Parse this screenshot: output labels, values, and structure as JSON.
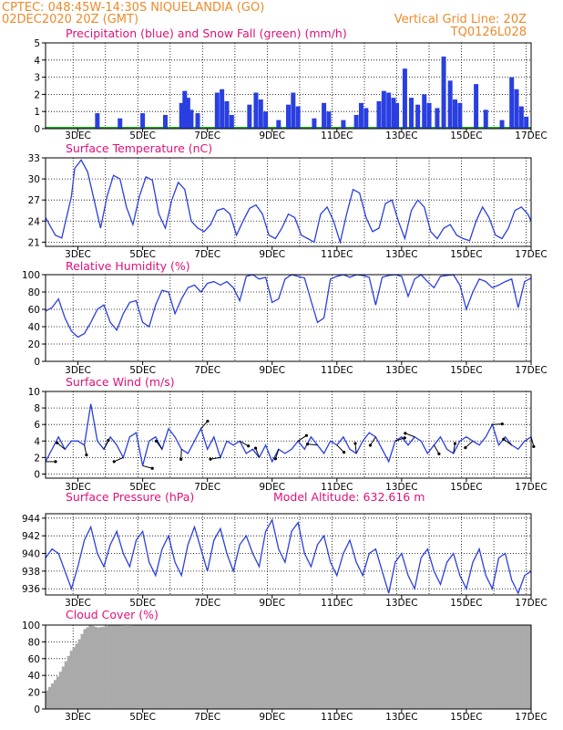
{
  "header": {
    "line1": "CPTEC:   048:45W-14:30S   NIQUELANDIA (GO)",
    "line2": "02DEC2020 20Z (GMT)",
    "grid_note": "Vertical Grid Line: 20Z",
    "code": "TQ0126L028"
  },
  "colors": {
    "series": "#2a3fe0",
    "snow": "#22aa22",
    "cloud": "#aaaaaa",
    "title": "#e0107a",
    "header": "#ee8a2a"
  },
  "x_ticks": [
    "3DEC",
    "5DEC",
    "7DEC",
    "9DEC",
    "11DEC",
    "13DEC",
    "15DEC",
    "17DEC"
  ],
  "chart_data": [
    {
      "type": "bar",
      "title": "Precipitation (blue) and Snow Fall (green) (mm/h)",
      "ylim": [
        0,
        5
      ],
      "yticks": [
        0,
        1,
        2,
        3,
        4,
        5
      ],
      "grid": true,
      "series": [
        {
          "x": [
            3.6,
            4.3,
            5.0,
            5.7,
            6.2,
            6.3,
            6.4,
            6.5,
            6.7,
            7.3,
            7.45,
            7.6,
            7.75,
            8.3,
            8.5,
            8.65,
            8.8,
            9.2,
            9.5,
            9.65,
            9.8,
            10.3,
            10.6,
            10.75,
            11.2,
            11.6,
            11.75,
            11.9,
            12.3,
            12.45,
            12.6,
            12.75,
            12.85,
            13.1,
            13.3,
            13.5,
            13.7,
            13.85,
            14.1,
            14.3,
            14.5,
            14.65,
            14.8,
            15.3,
            15.6,
            16.1,
            16.4,
            16.55,
            16.7,
            16.85
          ],
          "values": [
            0.9,
            0.6,
            0.9,
            0.8,
            1.5,
            2.2,
            1.8,
            1.1,
            0.9,
            2.1,
            2.3,
            1.6,
            0.8,
            1.4,
            2.1,
            1.7,
            1.0,
            0.5,
            1.4,
            2.1,
            1.3,
            0.6,
            1.5,
            1.0,
            0.5,
            0.8,
            1.5,
            1.2,
            1.6,
            2.2,
            2.1,
            1.8,
            1.5,
            3.5,
            1.8,
            1.4,
            2.0,
            1.5,
            1.2,
            4.2,
            2.8,
            1.7,
            1.5,
            2.6,
            1.1,
            0.5,
            3.0,
            2.3,
            1.3,
            0.7
          ]
        }
      ]
    },
    {
      "type": "line",
      "title": "Surface Temperature (nC)",
      "ylim": [
        20.4,
        33
      ],
      "yticks": [
        21,
        24,
        27,
        30,
        33
      ],
      "grid": true,
      "series": [
        {
          "x": [
            2.0,
            2.3,
            2.5,
            2.8,
            2.9,
            3.1,
            3.3,
            3.5,
            3.7,
            3.9,
            4.1,
            4.3,
            4.5,
            4.7,
            4.9,
            5.1,
            5.3,
            5.5,
            5.7,
            5.9,
            6.1,
            6.3,
            6.5,
            6.7,
            6.9,
            7.1,
            7.3,
            7.5,
            7.7,
            7.9,
            8.1,
            8.3,
            8.5,
            8.7,
            8.9,
            9.1,
            9.3,
            9.5,
            9.7,
            9.9,
            10.1,
            10.3,
            10.5,
            10.7,
            10.9,
            11.1,
            11.3,
            11.5,
            11.7,
            11.9,
            12.1,
            12.3,
            12.5,
            12.7,
            12.9,
            13.1,
            13.3,
            13.5,
            13.7,
            13.9,
            14.1,
            14.3,
            14.5,
            14.7,
            14.9,
            15.1,
            15.3,
            15.5,
            15.7,
            15.9,
            16.1,
            16.3,
            16.5,
            16.7,
            16.9,
            17.0
          ],
          "values": [
            24.5,
            22.0,
            21.6,
            27.5,
            31.5,
            32.7,
            31.0,
            27.0,
            23.0,
            27.5,
            30.5,
            30.0,
            26.0,
            23.5,
            27.5,
            30.3,
            29.8,
            25.0,
            23.0,
            27.0,
            29.5,
            28.5,
            24.0,
            23.0,
            22.5,
            23.5,
            25.5,
            25.8,
            25.0,
            22.0,
            24.0,
            25.8,
            26.3,
            25.0,
            22.0,
            21.5,
            23.0,
            25.0,
            24.5,
            22.0,
            21.5,
            21.0,
            25.0,
            26.0,
            24.0,
            21.0,
            25.0,
            28.5,
            28.0,
            24.5,
            22.5,
            23.0,
            26.5,
            27.0,
            24.0,
            21.5,
            25.5,
            27.0,
            26.0,
            22.5,
            21.5,
            23.0,
            23.5,
            22.0,
            21.5,
            21.2,
            24.0,
            26.0,
            24.5,
            22.0,
            21.5,
            23.0,
            25.5,
            26.0,
            25.0,
            24.0
          ]
        }
      ]
    },
    {
      "type": "line",
      "title": "Relative Humidity (%)",
      "ylim": [
        0,
        100
      ],
      "yticks": [
        0,
        20,
        40,
        60,
        80,
        100
      ],
      "grid": true,
      "series": [
        {
          "x": [
            2.0,
            2.2,
            2.4,
            2.6,
            2.8,
            3.0,
            3.2,
            3.4,
            3.6,
            3.8,
            4.0,
            4.2,
            4.4,
            4.6,
            4.8,
            5.0,
            5.2,
            5.4,
            5.6,
            5.8,
            6.0,
            6.2,
            6.4,
            6.6,
            6.8,
            7.0,
            7.2,
            7.4,
            7.6,
            7.8,
            8.0,
            8.2,
            8.4,
            8.6,
            8.8,
            9.0,
            9.2,
            9.4,
            9.6,
            9.8,
            10.0,
            10.2,
            10.4,
            10.6,
            10.8,
            11.0,
            11.2,
            11.4,
            11.6,
            11.8,
            12.0,
            12.2,
            12.4,
            12.6,
            12.8,
            13.0,
            13.2,
            13.4,
            13.6,
            13.8,
            14.0,
            14.2,
            14.4,
            14.6,
            14.8,
            15.0,
            15.2,
            15.4,
            15.6,
            15.8,
            16.0,
            16.2,
            16.4,
            16.6,
            16.8,
            17.0
          ],
          "values": [
            58,
            62,
            72,
            50,
            35,
            28,
            32,
            45,
            60,
            65,
            45,
            36,
            55,
            68,
            70,
            45,
            40,
            65,
            82,
            80,
            55,
            72,
            85,
            88,
            80,
            90,
            92,
            88,
            92,
            85,
            70,
            98,
            100,
            95,
            97,
            68,
            72,
            95,
            100,
            98,
            96,
            70,
            45,
            50,
            95,
            98,
            100,
            97,
            100,
            99,
            97,
            65,
            97,
            99,
            100,
            98,
            75,
            95,
            100,
            92,
            85,
            98,
            99,
            100,
            88,
            60,
            80,
            95,
            92,
            85,
            88,
            92,
            95,
            62,
            92,
            96
          ]
        }
      ]
    },
    {
      "type": "line",
      "title": "Surface Wind (m/s)",
      "ylim": [
        -0.5,
        10
      ],
      "yticks": [
        0,
        2,
        4,
        6,
        8,
        10
      ],
      "grid": true,
      "series": [
        {
          "x": [
            2.0,
            2.2,
            2.4,
            2.6,
            2.8,
            3.0,
            3.2,
            3.4,
            3.6,
            3.8,
            4.0,
            4.2,
            4.4,
            4.6,
            4.8,
            5.0,
            5.2,
            5.4,
            5.6,
            5.8,
            6.0,
            6.2,
            6.4,
            6.6,
            6.8,
            7.0,
            7.2,
            7.4,
            7.6,
            7.8,
            8.0,
            8.2,
            8.4,
            8.6,
            8.8,
            9.0,
            9.2,
            9.4,
            9.6,
            9.8,
            10.0,
            10.2,
            10.4,
            10.6,
            10.8,
            11.0,
            11.2,
            11.4,
            11.6,
            11.8,
            12.0,
            12.2,
            12.4,
            12.6,
            12.8,
            13.0,
            13.2,
            13.4,
            13.6,
            13.8,
            14.0,
            14.2,
            14.4,
            14.6,
            14.8,
            15.0,
            15.2,
            15.4,
            15.6,
            15.8,
            16.0,
            16.2,
            16.4,
            16.6,
            16.8,
            17.0
          ],
          "values": [
            1.5,
            3.0,
            4.5,
            3.0,
            4.0,
            4.0,
            3.5,
            8.5,
            4.0,
            3.0,
            4.5,
            3.5,
            2.0,
            4.5,
            5.0,
            1.0,
            4.0,
            4.5,
            3.0,
            5.5,
            4.5,
            3.0,
            2.5,
            4.0,
            5.5,
            3.0,
            4.5,
            2.0,
            4.0,
            3.5,
            4.0,
            2.5,
            3.0,
            2.0,
            3.5,
            1.5,
            3.0,
            2.5,
            3.0,
            4.0,
            3.0,
            4.5,
            3.5,
            2.5,
            4.0,
            3.5,
            4.5,
            3.0,
            2.5,
            4.0,
            5.0,
            4.5,
            3.0,
            1.5,
            4.0,
            4.5,
            3.5,
            4.5,
            4.0,
            2.5,
            3.5,
            4.5,
            3.0,
            2.5,
            4.0,
            4.5,
            4.0,
            3.5,
            4.5,
            6.0,
            3.5,
            4.5,
            3.5,
            3.0,
            4.0,
            4.5
          ]
        }
      ]
    },
    {
      "type": "line",
      "title": "Surface Pressure (hPa)",
      "annotation": "Model Altitude: 632.616 m",
      "ylim": [
        935.3,
        944.5
      ],
      "yticks": [
        936,
        938,
        940,
        942,
        944
      ],
      "grid": true,
      "series": [
        {
          "x": [
            2.0,
            2.2,
            2.4,
            2.6,
            2.8,
            3.0,
            3.2,
            3.4,
            3.6,
            3.8,
            4.0,
            4.2,
            4.4,
            4.6,
            4.8,
            5.0,
            5.2,
            5.4,
            5.6,
            5.8,
            6.0,
            6.2,
            6.4,
            6.6,
            6.8,
            7.0,
            7.2,
            7.4,
            7.6,
            7.8,
            8.0,
            8.2,
            8.4,
            8.6,
            8.8,
            9.0,
            9.2,
            9.4,
            9.6,
            9.8,
            10.0,
            10.2,
            10.4,
            10.6,
            10.8,
            11.0,
            11.2,
            11.4,
            11.6,
            11.8,
            12.0,
            12.2,
            12.4,
            12.6,
            12.8,
            13.0,
            13.2,
            13.4,
            13.6,
            13.8,
            14.0,
            14.2,
            14.4,
            14.6,
            14.8,
            15.0,
            15.2,
            15.4,
            15.6,
            15.8,
            16.0,
            16.2,
            16.4,
            16.6,
            16.8,
            17.0
          ],
          "values": [
            939.5,
            940.5,
            940.0,
            938.0,
            936.0,
            938.5,
            941.5,
            943.0,
            940.0,
            938.5,
            941.0,
            942.5,
            940.0,
            938.5,
            941.5,
            942.5,
            939.0,
            937.5,
            940.5,
            942.0,
            939.0,
            937.5,
            941.0,
            943.0,
            940.5,
            938.0,
            941.5,
            942.8,
            940.0,
            938.0,
            941.0,
            942.0,
            940.0,
            938.5,
            942.5,
            943.8,
            940.5,
            939.0,
            942.5,
            943.5,
            940.0,
            938.5,
            941.0,
            942.0,
            939.0,
            937.5,
            940.0,
            941.5,
            939.0,
            937.5,
            940.0,
            940.5,
            938.0,
            935.5,
            939.0,
            940.0,
            937.5,
            936.0,
            939.5,
            940.5,
            938.0,
            936.5,
            939.0,
            940.0,
            937.5,
            936.0,
            939.0,
            940.5,
            937.5,
            936.0,
            939.5,
            940.0,
            937.0,
            935.5,
            937.5,
            938.0
          ]
        }
      ]
    },
    {
      "type": "bar",
      "title": "Cloud Cover (%)",
      "ylim": [
        0,
        100
      ],
      "yticks": [
        0,
        20,
        40,
        60,
        80,
        100
      ],
      "grid": true,
      "series": [
        {
          "x": [
            2.0,
            2.2,
            2.4,
            2.6,
            2.8,
            3.0,
            3.2,
            3.4,
            3.6,
            3.8,
            4.0,
            4.5,
            5.0,
            5.5,
            6.0,
            6.5,
            7.0,
            7.5,
            8.0,
            9.0,
            10.0,
            11.0,
            12.0,
            13.0,
            14.0,
            15.0,
            16.0,
            17.0
          ],
          "values": [
            20,
            30,
            40,
            55,
            70,
            80,
            95,
            100,
            97,
            98,
            100,
            99,
            100,
            100,
            100,
            100,
            100,
            100,
            100,
            100,
            100,
            100,
            100,
            100,
            100,
            100,
            100,
            100
          ]
        }
      ]
    }
  ]
}
